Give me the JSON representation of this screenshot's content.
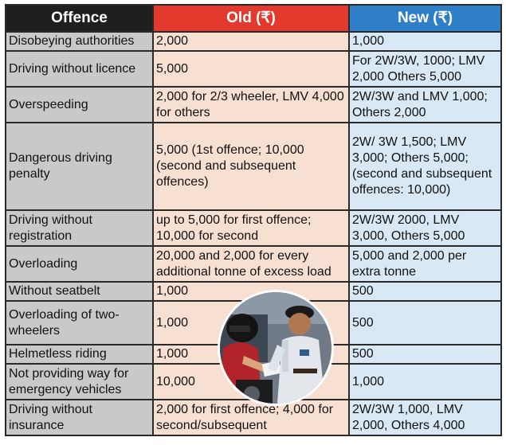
{
  "headers": {
    "offence": "Offence",
    "old": "Old (₹)",
    "new": "New (₹)"
  },
  "colors": {
    "offence_header": "#1f1f1f",
    "old_header": "#e43a2e",
    "new_header": "#2e7fc8",
    "offence_cell": "#c9c9c9",
    "old_cell": "#f7dfd2",
    "new_cell": "#d8e8f5"
  },
  "rows": [
    {
      "offence": "Disobeying authorities",
      "old": "2,000",
      "new": "1,000"
    },
    {
      "offence": "Driving without licence",
      "old": "5,000",
      "new": "For 2W/3W, 1000; LMV 2,000 Others 5,000"
    },
    {
      "offence": "Overspeeding",
      "old": "2,000 for 2/3 wheeler, LMV 4,000 for others",
      "new": "2W/3W and LMV 1,000; Others 2,000"
    },
    {
      "offence": "Dangerous driving penalty",
      "old": "5,000 (1st offence; 10,000 (second and subsequent offences)",
      "new": "2W/ 3W 1,500; LMV 3,000; Others 5,000; (second and subsequent offences: 10,000)"
    },
    {
      "offence": "Driving without registration",
      "old": "up to 5,000 for first offence; 10,000 for second",
      "new": "2W/3W 2000, LMV 3,000, Others 5,000"
    },
    {
      "offence": "Overloading",
      "old": "20,000 and 2,000 for every additional tonne of excess load",
      "new": "5,000 and 2,000 per extra tonne"
    },
    {
      "offence": "Without seatbelt",
      "old": "1,000",
      "new": "500"
    },
    {
      "offence": "Overloading of two-wheelers",
      "old": "1,000",
      "new": "500"
    },
    {
      "offence": "Helmetless riding",
      "old": "1,000",
      "new": "500"
    },
    {
      "offence": "Not providing way for emergency vehicles",
      "old": "10,000",
      "new": "1,000"
    },
    {
      "offence": "Driving without insurance",
      "old": "2,000 for first offence; 4,000 for second/subsequent",
      "new": "2W/3W 1,000, LMV 2,000, Others 4,000"
    }
  ]
}
